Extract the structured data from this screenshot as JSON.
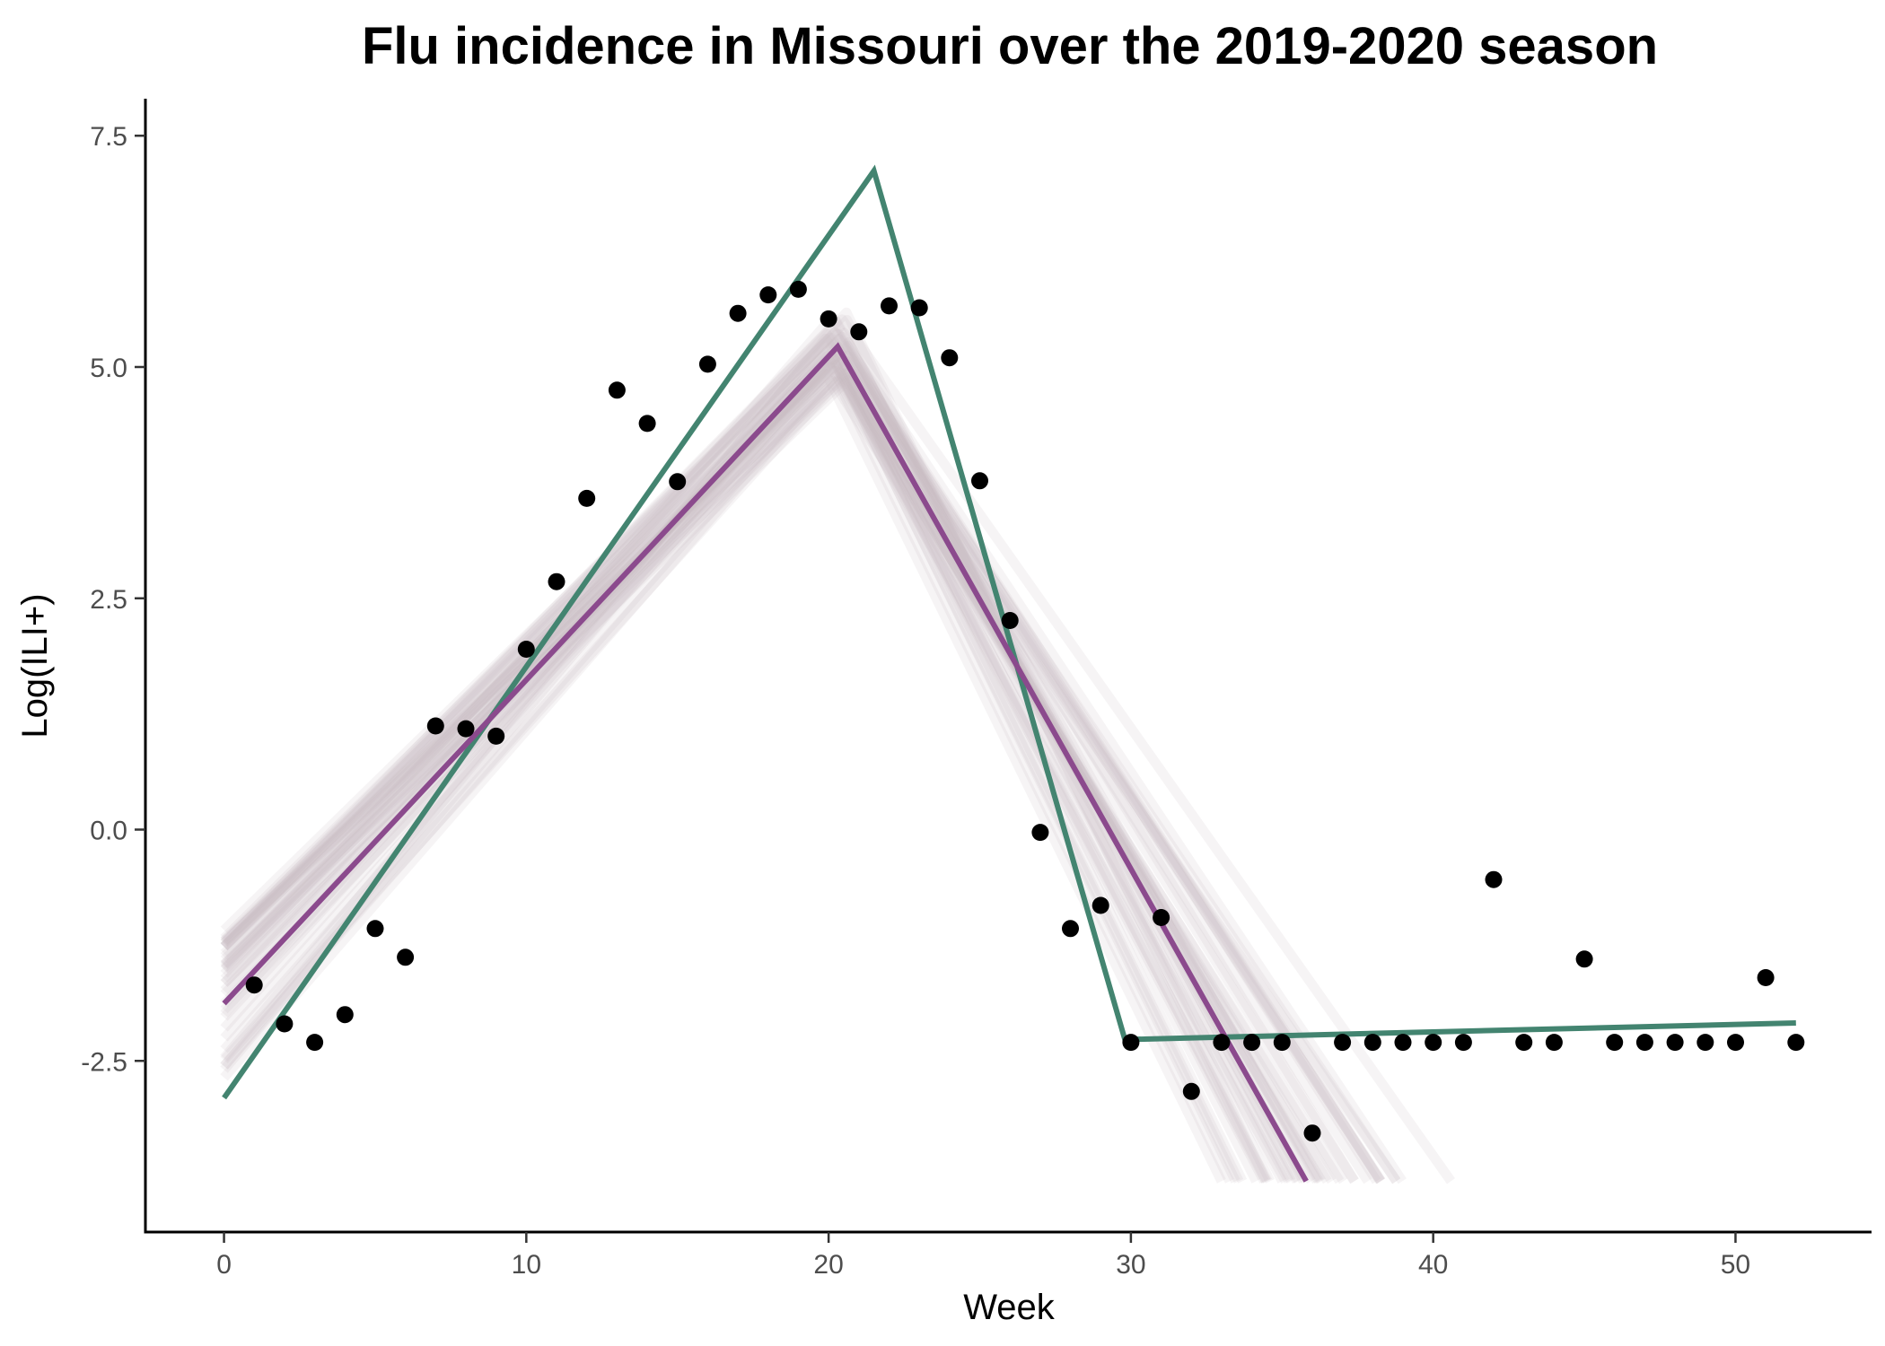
{
  "chart_data": {
    "type": "scatter",
    "title": "Flu incidence in Missouri over the 2019-2020 season",
    "xlabel": "Week",
    "ylabel": "Log(ILI+)",
    "xlim": [
      -2.6,
      54.5
    ],
    "ylim": [
      -4.35,
      7.9
    ],
    "x_ticks": [
      0,
      10,
      20,
      30,
      40,
      50
    ],
    "x_tick_labels": [
      "0",
      "10",
      "20",
      "30",
      "40",
      "50"
    ],
    "y_ticks": [
      -2.5,
      0,
      2.5,
      5,
      7.5
    ],
    "y_tick_labels": [
      "-2.5",
      "0.0",
      "2.5",
      "5.0",
      "7.5"
    ],
    "grid": false,
    "legend": "none",
    "points": {
      "color": "#000000",
      "x": [
        1,
        2,
        3,
        4,
        5,
        6,
        7,
        8,
        9,
        10,
        11,
        12,
        13,
        14,
        15,
        16,
        17,
        18,
        19,
        20,
        21,
        22,
        23,
        24,
        25,
        26,
        27,
        28,
        29,
        30,
        31,
        32,
        33,
        34,
        35,
        36,
        37,
        38,
        39,
        40,
        41,
        42,
        43,
        44,
        45,
        46,
        47,
        48,
        49,
        50,
        51,
        52
      ],
      "y": [
        -1.68,
        -2.1,
        -2.3,
        -2.0,
        -1.07,
        -1.38,
        1.12,
        1.09,
        1.01,
        1.95,
        2.68,
        3.58,
        4.75,
        4.39,
        3.76,
        5.03,
        5.58,
        5.78,
        5.84,
        5.52,
        5.38,
        5.66,
        5.64,
        5.1,
        3.77,
        2.26,
        -0.03,
        -1.07,
        -0.82,
        -2.3,
        -0.95,
        -2.83,
        -2.3,
        -2.3,
        -2.3,
        -3.28,
        -2.3,
        -2.3,
        -2.3,
        -2.3,
        -2.3,
        -0.54,
        -2.3,
        -2.3,
        -1.4,
        -2.3,
        -2.3,
        -2.3,
        -2.3,
        -2.3,
        -1.6,
        -2.3
      ]
    },
    "series": [
      {
        "color": "#438470",
        "x": [
          0,
          21.5,
          29.8,
          52
        ],
        "y": [
          -2.9,
          7.12,
          -2.27,
          -2.09
        ]
      },
      {
        "color": "#8b4a8d",
        "x": [
          0,
          20.3,
          35.8
        ],
        "y": [
          -1.88,
          5.22,
          -3.8
        ]
      }
    ],
    "uncertainty_band": {
      "color": "#c8bcbe",
      "count": 40
    }
  }
}
